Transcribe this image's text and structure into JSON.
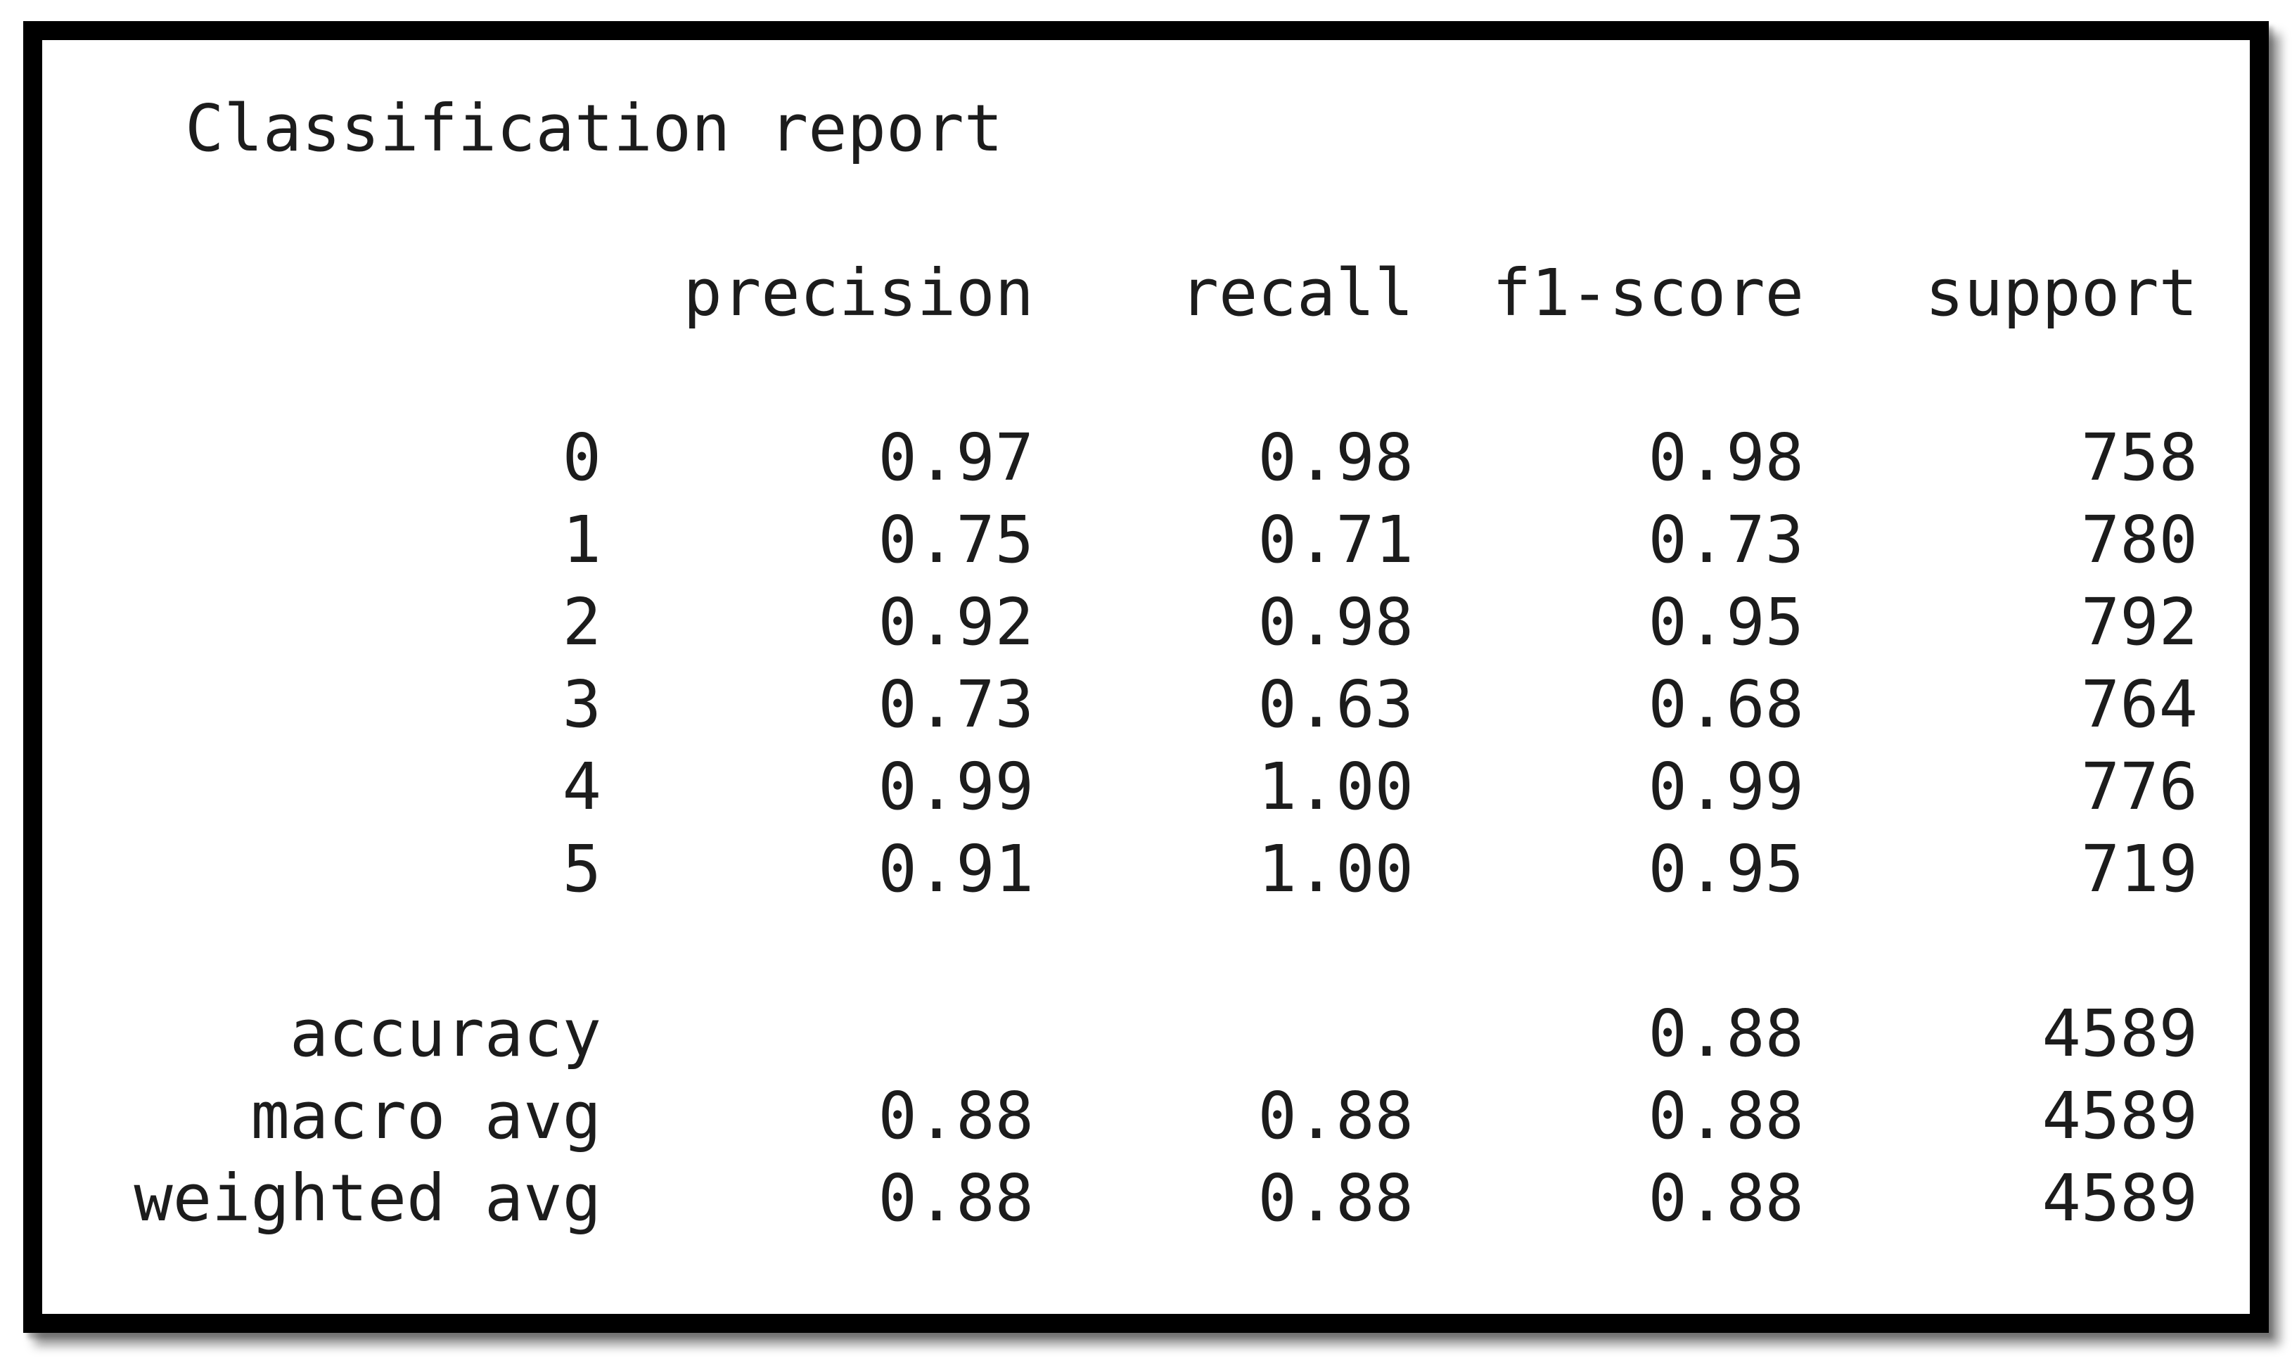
{
  "report": {
    "title": "Classification report",
    "columns": [
      "precision",
      "recall",
      "f1-score",
      "support"
    ],
    "rows": [
      {
        "label": "0",
        "precision": "0.97",
        "recall": "0.98",
        "f1": "0.98",
        "support": "758"
      },
      {
        "label": "1",
        "precision": "0.75",
        "recall": "0.71",
        "f1": "0.73",
        "support": "780"
      },
      {
        "label": "2",
        "precision": "0.92",
        "recall": "0.98",
        "f1": "0.95",
        "support": "792"
      },
      {
        "label": "3",
        "precision": "0.73",
        "recall": "0.63",
        "f1": "0.68",
        "support": "764"
      },
      {
        "label": "4",
        "precision": "0.99",
        "recall": "1.00",
        "f1": "0.99",
        "support": "776"
      },
      {
        "label": "5",
        "precision": "0.91",
        "recall": "1.00",
        "f1": "0.95",
        "support": "719"
      }
    ],
    "summary": [
      {
        "label": "accuracy",
        "precision": "",
        "recall": "",
        "f1": "0.88",
        "support": "4589"
      },
      {
        "label": "macro avg",
        "precision": "0.88",
        "recall": "0.88",
        "f1": "0.88",
        "support": "4589"
      },
      {
        "label": "weighted avg",
        "precision": "0.88",
        "recall": "0.88",
        "f1": "0.88",
        "support": "4589"
      }
    ],
    "colors": {
      "frame": "#000000",
      "background": "#ffffff",
      "text": "#1c1c1c"
    }
  }
}
